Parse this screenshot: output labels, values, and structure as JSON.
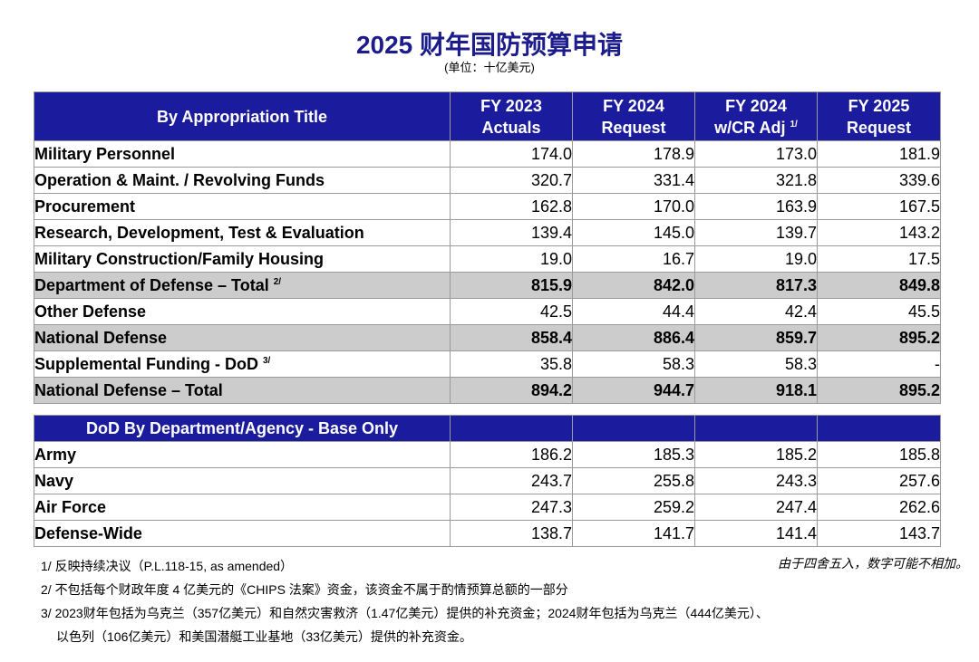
{
  "title": "2025 财年国防预算申请",
  "unit": "(单位：十亿美元)",
  "table1": {
    "headers": {
      "label": "By Appropriation Title",
      "fy2023_line1": "FY 2023",
      "fy2023_line2": "Actuals",
      "fy2024_line1": "FY 2024",
      "fy2024_line2": "Request",
      "fy2024cr_line1": "FY 2024",
      "fy2024cr_line2": "w/CR Adj",
      "fy2024cr_sup": "1/",
      "fy2025_line1": "FY 2025",
      "fy2025_line2": "Request"
    },
    "rows": [
      {
        "label": "Military Personnel",
        "sup": "",
        "v": [
          "174.0",
          "178.9",
          "173.0",
          "181.9"
        ],
        "total": false
      },
      {
        "label": "Operation & Maint. / Revolving Funds",
        "sup": "",
        "v": [
          "320.7",
          "331.4",
          "321.8",
          "339.6"
        ],
        "total": false
      },
      {
        "label": "Procurement",
        "sup": "",
        "v": [
          "162.8",
          "170.0",
          "163.9",
          "167.5"
        ],
        "total": false
      },
      {
        "label": "Research, Development, Test & Evaluation",
        "sup": "",
        "v": [
          "139.4",
          "145.0",
          "139.7",
          "143.2"
        ],
        "total": false
      },
      {
        "label": "Military Construction/Family Housing",
        "sup": "",
        "v": [
          "19.0",
          "16.7",
          "19.0",
          "17.5"
        ],
        "total": false
      },
      {
        "label": "Department of Defense – Total",
        "sup": "2/",
        "v": [
          "815.9",
          "842.0",
          "817.3",
          "849.8"
        ],
        "total": true
      },
      {
        "label": "Other Defense",
        "sup": "",
        "v": [
          "42.5",
          "44.4",
          "42.4",
          "45.5"
        ],
        "total": false
      },
      {
        "label": "National Defense",
        "sup": "",
        "v": [
          "858.4",
          "886.4",
          "859.7",
          "895.2"
        ],
        "total": true
      },
      {
        "label": "Supplemental Funding - DoD",
        "sup": "3/",
        "v": [
          "35.8",
          "58.3",
          "58.3",
          "-"
        ],
        "total": false
      },
      {
        "label": "National Defense – Total",
        "sup": "",
        "v": [
          "894.2",
          "944.7",
          "918.1",
          "895.2"
        ],
        "total": true
      }
    ]
  },
  "table2": {
    "header": "DoD By Department/Agency - Base Only",
    "rows": [
      {
        "label": "Army",
        "v": [
          "186.2",
          "185.3",
          "185.2",
          "185.8"
        ]
      },
      {
        "label": "Navy",
        "v": [
          "243.7",
          "255.8",
          "243.3",
          "257.6"
        ]
      },
      {
        "label": "Air Force",
        "v": [
          "247.3",
          "259.2",
          "247.4",
          "262.6"
        ]
      },
      {
        "label": "Defense-Wide",
        "v": [
          "138.7",
          "141.7",
          "141.4",
          "143.7"
        ]
      }
    ]
  },
  "notes": {
    "n1": "1/ 反映持续决议（P.L.118-15, as amended）",
    "n2": "2/ 不包括每个财政年度 4 亿美元的《CHIPS 法案》资金，该资金不属于酌情预算总额的一部分",
    "n3a": "3/ 2023财年包括为乌克兰（357亿美元）和自然灾害救济（1.47亿美元）提供的补充资金；2024财年包括为乌克兰（444亿美元）、",
    "n3b": "以色列（106亿美元）和美国潜艇工业基地（33亿美元）提供的补充资金。",
    "rounding": "由于四舍五入，数字可能不相加。"
  },
  "colors": {
    "header_blue": "#1b1b9e",
    "title_blue": "#1c1c8c",
    "total_gray": "#cccccc"
  }
}
